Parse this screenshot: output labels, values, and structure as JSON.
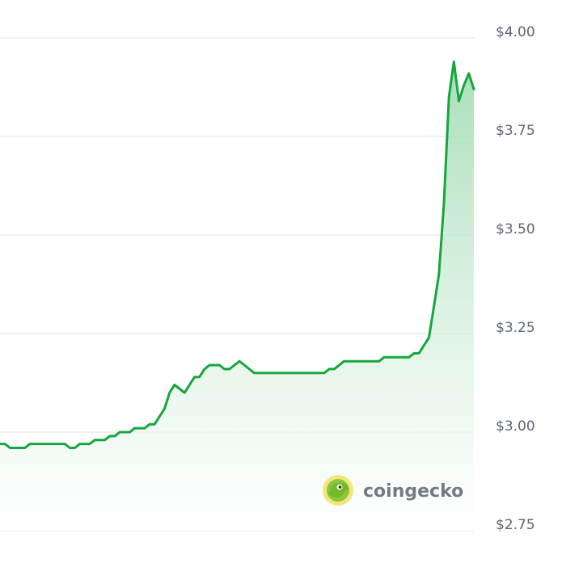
{
  "chart_data": {
    "type": "area",
    "title": "",
    "xlabel": "",
    "ylabel": "",
    "ylim": [
      2.75,
      4.0
    ],
    "y_ticks": [
      4.0,
      3.75,
      3.5,
      3.25,
      3.0,
      2.75
    ],
    "y_tick_labels": [
      "$4.00",
      "$3.75",
      "$3.50",
      "$3.25",
      "$3.00",
      "$2.75"
    ],
    "grid": true,
    "y_axis_position": "right",
    "legend": "none",
    "colors": {
      "line": "#15a63b",
      "fill_top": "#9ad9ad",
      "fill_bottom": "#ffffff",
      "grid": "#e9ebee",
      "tick_text": "#5c6577"
    },
    "series": [
      {
        "values": [
          2.97,
          2.97,
          2.96,
          2.96,
          2.96,
          2.96,
          2.97,
          2.97,
          2.97,
          2.97,
          2.97,
          2.97,
          2.97,
          2.97,
          2.96,
          2.96,
          2.97,
          2.97,
          2.97,
          2.98,
          2.98,
          2.98,
          2.99,
          2.99,
          3.0,
          3.0,
          3.0,
          3.01,
          3.01,
          3.01,
          3.02,
          3.02,
          3.04,
          3.06,
          3.1,
          3.12,
          3.11,
          3.1,
          3.12,
          3.14,
          3.14,
          3.16,
          3.17,
          3.17,
          3.17,
          3.16,
          3.16,
          3.17,
          3.18,
          3.17,
          3.16,
          3.15,
          3.15,
          3.15,
          3.15,
          3.15,
          3.15,
          3.15,
          3.15,
          3.15,
          3.15,
          3.15,
          3.15,
          3.15,
          3.15,
          3.15,
          3.16,
          3.16,
          3.17,
          3.18,
          3.18,
          3.18,
          3.18,
          3.18,
          3.18,
          3.18,
          3.18,
          3.19,
          3.19,
          3.19,
          3.19,
          3.19,
          3.19,
          3.2,
          3.2,
          3.22,
          3.24,
          3.32,
          3.4,
          3.58,
          3.85,
          3.94,
          3.84,
          3.88,
          3.91,
          3.87
        ]
      }
    ]
  },
  "watermark": {
    "text": "coingecko",
    "icon": "gecko-logo-icon"
  }
}
